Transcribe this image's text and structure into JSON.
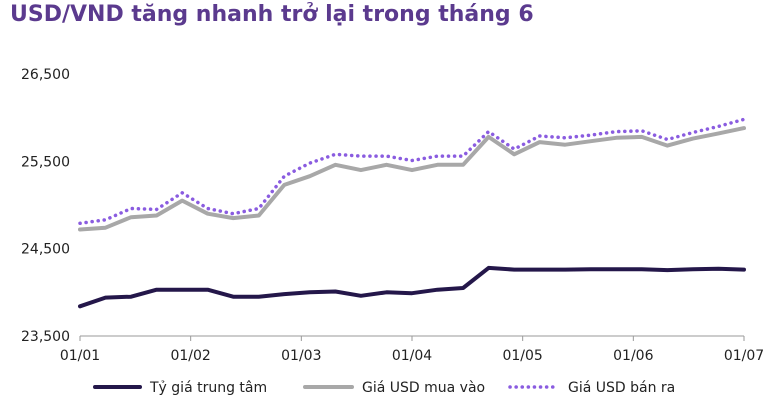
{
  "title": "USD/VND tăng nhanh trở lại trong tháng 6",
  "colors": {
    "title": "#5b3a8e",
    "central": "#24174a",
    "buy": "#a8a8a8",
    "sell": "#8a5ce0"
  },
  "chart_data": {
    "type": "line",
    "title": "USD/VND tăng nhanh trở lại trong tháng 6",
    "xlabel": "",
    "ylabel": "",
    "ylim": [
      23500,
      26500
    ],
    "yticks": [
      "23,500",
      "24,500",
      "25,500",
      "26,500"
    ],
    "ytick_values": [
      23500,
      24500,
      25500,
      26500
    ],
    "xticks": [
      "01/01",
      "01/02",
      "01/03",
      "01/04",
      "01/05",
      "01/06",
      "01/07"
    ],
    "x": [
      0,
      1,
      2,
      3,
      4,
      5,
      6,
      7,
      8,
      9,
      10,
      11,
      12,
      13,
      14,
      15,
      16,
      17,
      18,
      19,
      20,
      21,
      22,
      23,
      24,
      25,
      26
    ],
    "x_dates": [
      "01/01",
      "08/01",
      "15/01",
      "22/01",
      "29/01",
      "05/02",
      "12/02",
      "19/02",
      "26/02",
      "05/03",
      "12/03",
      "19/03",
      "26/03",
      "02/04",
      "09/04",
      "16/04",
      "23/04",
      "30/04",
      "07/05",
      "14/05",
      "21/05",
      "28/05",
      "04/06",
      "11/06",
      "18/06",
      "25/06",
      "01/07"
    ],
    "legend": "bottom",
    "grid": false,
    "series": [
      {
        "name": "Tỷ giá trung tâm",
        "style": "solid-dark",
        "values": [
          23840,
          23940,
          23950,
          24030,
          24030,
          24030,
          23950,
          23950,
          23980,
          24000,
          24010,
          23960,
          24000,
          23990,
          24030,
          24050,
          24280,
          24260,
          24260,
          24260,
          24265,
          24265,
          24265,
          24255,
          24265,
          24270,
          24260
        ]
      },
      {
        "name": "Giá USD mua vào",
        "style": "solid-gray",
        "values": [
          24720,
          24740,
          24860,
          24880,
          25050,
          24900,
          24850,
          24880,
          25230,
          25330,
          25460,
          25400,
          25460,
          25400,
          25460,
          25460,
          25780,
          25580,
          25720,
          25690,
          25730,
          25770,
          25780,
          25680,
          25760,
          25820,
          25880
        ]
      },
      {
        "name": "Giá USD bán ra",
        "style": "dotted-purple",
        "values": [
          24790,
          24830,
          24960,
          24950,
          25140,
          24960,
          24900,
          24960,
          25330,
          25480,
          25580,
          25560,
          25560,
          25510,
          25560,
          25560,
          25840,
          25640,
          25790,
          25770,
          25800,
          25840,
          25850,
          25750,
          25830,
          25900,
          25980
        ]
      }
    ]
  }
}
